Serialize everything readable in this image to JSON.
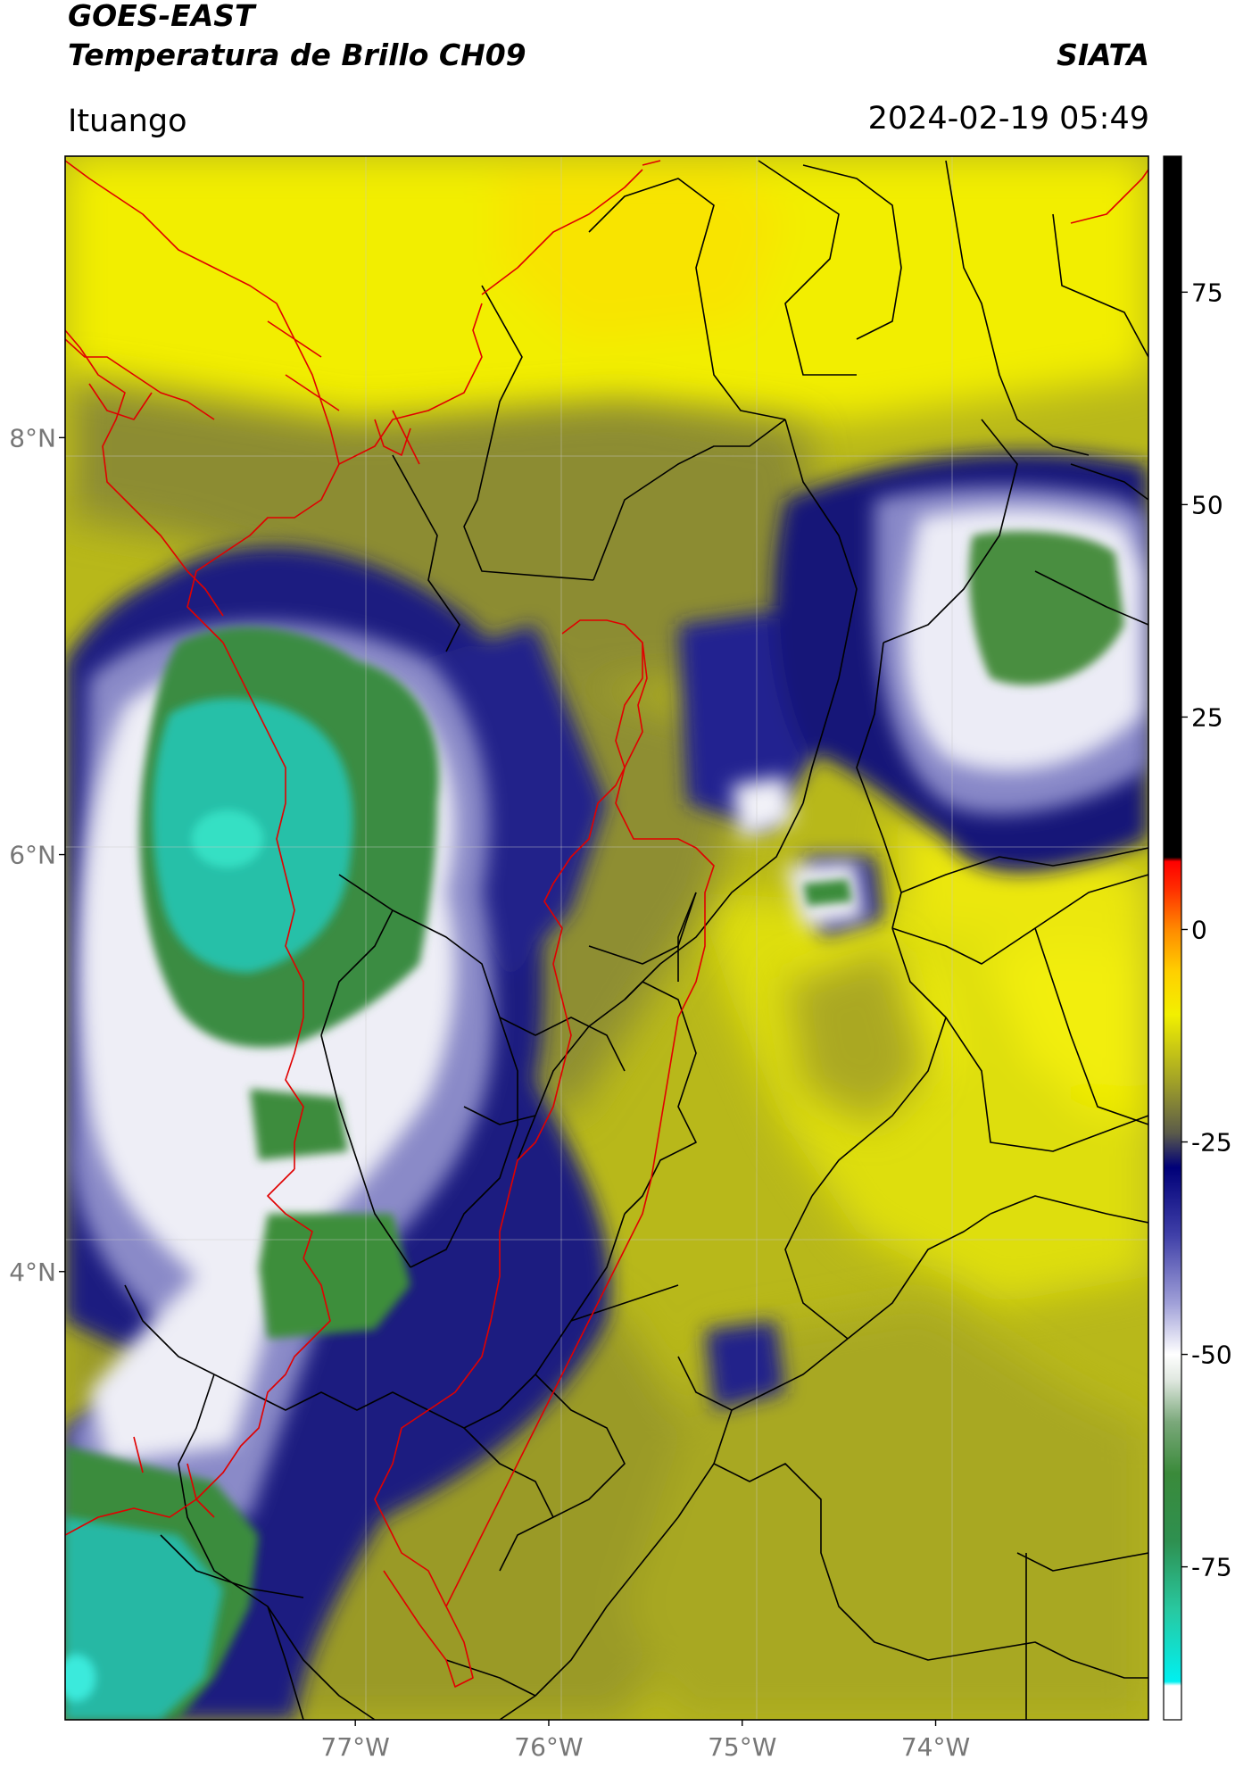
{
  "header": {
    "satellite": "GOES-EAST",
    "product": "Temperatura de Brillo CH09",
    "brand": "SIATA",
    "location": "Ituango",
    "datetime": "2024-02-19 05:49"
  },
  "map": {
    "lon_range": [
      -78.5,
      -72.9
    ],
    "lat_range": [
      1.85,
      9.35
    ],
    "lon_ticks": [
      {
        "value": -77,
        "label": "77°W"
      },
      {
        "value": -76,
        "label": "76°W"
      },
      {
        "value": -75,
        "label": "75°W"
      },
      {
        "value": -74,
        "label": "74°W"
      }
    ],
    "lat_ticks": [
      {
        "value": 8,
        "label": "8°N"
      },
      {
        "value": 6,
        "label": "6°N"
      },
      {
        "value": 4,
        "label": "4°N"
      }
    ],
    "colors": {
      "warm_background": "#e6e600",
      "warm_yellow": "#f6f000",
      "dull_olive": "#9c9c28",
      "olive_mid": "#b8b81a",
      "deep_blue": "#16167a",
      "blue_light": "#8c8cc6",
      "white_cloud": "#f4f4f8",
      "green": "#3a8c3a",
      "teal": "#24c0a8",
      "border_black": "#000000",
      "border_red": "#e00000"
    }
  },
  "colorbar": {
    "range": [
      -93,
      91
    ],
    "ticks": [
      {
        "value": 75,
        "label": "75"
      },
      {
        "value": 50,
        "label": "50"
      },
      {
        "value": 25,
        "label": "25"
      },
      {
        "value": 0,
        "label": "0"
      },
      {
        "value": -25,
        "label": "-25"
      },
      {
        "value": -50,
        "label": "-50"
      },
      {
        "value": -75,
        "label": "-75"
      }
    ],
    "stops": [
      {
        "value": -93,
        "color": "#ffffff"
      },
      {
        "value": -89,
        "color": "#ffffff"
      },
      {
        "value": -88.5,
        "color": "#00f0f0"
      },
      {
        "value": -80,
        "color": "#28c8a0"
      },
      {
        "value": -72,
        "color": "#2e9050"
      },
      {
        "value": -64,
        "color": "#3a8a3a"
      },
      {
        "value": -58,
        "color": "#7aa87a"
      },
      {
        "value": -53,
        "color": "#e0e8e0"
      },
      {
        "value": -50,
        "color": "#ffffff"
      },
      {
        "value": -44,
        "color": "#a0a0d8"
      },
      {
        "value": -36,
        "color": "#4040a8"
      },
      {
        "value": -28,
        "color": "#000078"
      },
      {
        "value": -24,
        "color": "#5a5a4a"
      },
      {
        "value": -18,
        "color": "#a0a028"
      },
      {
        "value": -10,
        "color": "#f2f000"
      },
      {
        "value": -5,
        "color": "#ffd000"
      },
      {
        "value": 0,
        "color": "#ff8a00"
      },
      {
        "value": 5,
        "color": "#ff2a00"
      },
      {
        "value": 8,
        "color": "#ff0000"
      },
      {
        "value": 8.5,
        "color": "#000000"
      },
      {
        "value": 91,
        "color": "#000000"
      }
    ]
  }
}
